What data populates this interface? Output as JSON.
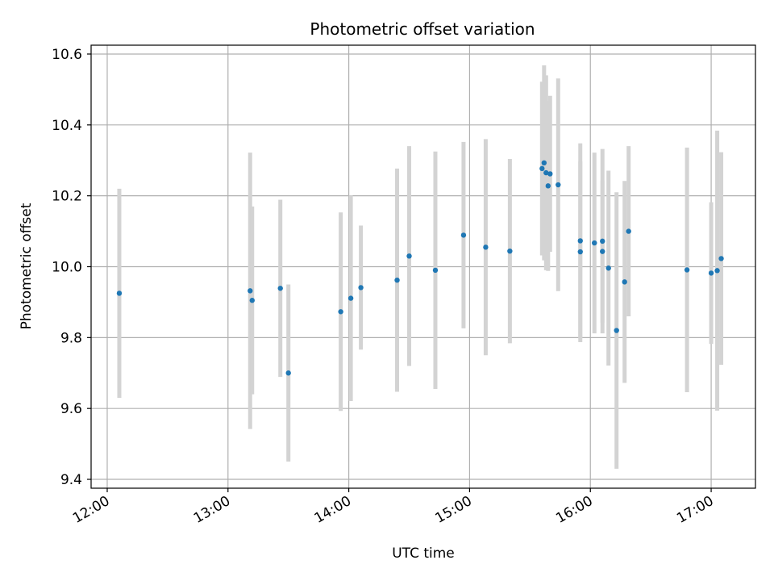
{
  "chart_data": {
    "type": "scatter",
    "title": "Photometric offset variation",
    "xlabel": "UTC time",
    "ylabel": "Photometric offset",
    "x_is_time": true,
    "xlim": [
      "11:52",
      "17:22"
    ],
    "ylim": [
      9.375,
      10.625
    ],
    "xticks": [
      "12:00",
      "13:00",
      "14:00",
      "15:00",
      "16:00",
      "17:00"
    ],
    "yticks": [
      9.4,
      9.6,
      9.8,
      10.0,
      10.2,
      10.4,
      10.6
    ],
    "ytick_labels": [
      "9.4",
      "9.6",
      "9.8",
      "10.0",
      "10.2",
      "10.4",
      "10.6"
    ],
    "grid": true,
    "colors": {
      "point": "#1f77b4",
      "errorbar": "#d3d3d3",
      "grid": "#b0b0b0"
    },
    "points": [
      {
        "x": "12:06",
        "y": 9.925,
        "err": 0.295
      },
      {
        "x": "13:11",
        "y": 9.932,
        "err": 0.39
      },
      {
        "x": "13:12",
        "y": 9.905,
        "err": 0.265
      },
      {
        "x": "13:26",
        "y": 9.939,
        "err": 0.25
      },
      {
        "x": "13:30",
        "y": 9.7,
        "err": 0.25
      },
      {
        "x": "13:56",
        "y": 9.873,
        "err": 0.28
      },
      {
        "x": "14:01",
        "y": 9.911,
        "err": 0.29
      },
      {
        "x": "14:06",
        "y": 9.941,
        "err": 0.175
      },
      {
        "x": "14:24",
        "y": 9.962,
        "err": 0.315
      },
      {
        "x": "14:30",
        "y": 10.03,
        "err": 0.31
      },
      {
        "x": "14:43",
        "y": 9.99,
        "err": 0.335
      },
      {
        "x": "14:57",
        "y": 10.089,
        "err": 0.263
      },
      {
        "x": "15:08",
        "y": 10.055,
        "err": 0.305
      },
      {
        "x": "15:20",
        "y": 10.044,
        "err": 0.26
      },
      {
        "x": "15:36",
        "y": 10.277,
        "err": 0.245
      },
      {
        "x": "15:37",
        "y": 10.293,
        "err": 0.275
      },
      {
        "x": "15:38",
        "y": 10.265,
        "err": 0.275
      },
      {
        "x": "15:39",
        "y": 10.228,
        "err": 0.24
      },
      {
        "x": "15:40",
        "y": 10.262,
        "err": 0.22
      },
      {
        "x": "15:44",
        "y": 10.231,
        "err": 0.3
      },
      {
        "x": "15:55",
        "y": 10.073,
        "err": 0.275
      },
      {
        "x": "15:55",
        "y": 10.042,
        "err": 0.255
      },
      {
        "x": "16:02",
        "y": 10.067,
        "err": 0.255
      },
      {
        "x": "16:06",
        "y": 10.072,
        "err": 0.26
      },
      {
        "x": "16:06",
        "y": 10.043,
        "err": 0.2
      },
      {
        "x": "16:09",
        "y": 9.996,
        "err": 0.275
      },
      {
        "x": "16:13",
        "y": 9.82,
        "err": 0.39
      },
      {
        "x": "16:17",
        "y": 9.957,
        "err": 0.285
      },
      {
        "x": "16:19",
        "y": 10.1,
        "err": 0.24
      },
      {
        "x": "16:48",
        "y": 9.991,
        "err": 0.345
      },
      {
        "x": "17:00",
        "y": 9.982,
        "err": 0.2
      },
      {
        "x": "17:03",
        "y": 9.989,
        "err": 0.395
      },
      {
        "x": "17:05",
        "y": 10.023,
        "err": 0.3
      }
    ]
  }
}
